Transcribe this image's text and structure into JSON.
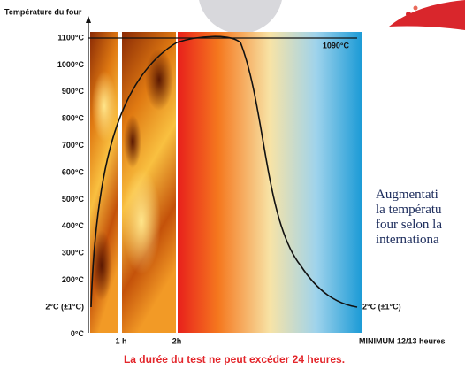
{
  "header": {
    "title": "Température du four"
  },
  "y_axis": {
    "labels": [
      "1100°C",
      "1000°C",
      "900°C",
      "800°C",
      "700°C",
      "600°C",
      "500°C",
      "400°C",
      "300°C",
      "200°C",
      "2°C (±1°C)",
      "0°C"
    ]
  },
  "curve": {
    "plateau_label": "1090°C",
    "end_label": "2°C (±1°C)"
  },
  "x_axis": {
    "labels": [
      "1 h",
      "2h",
      "MINIMUM 12/13 heures"
    ]
  },
  "caption": "La durée du test ne peut excéder 24 heures.",
  "side_text": {
    "lines": [
      "Augmentati",
      "la températu",
      "four selon la",
      "internationa"
    ]
  }
}
